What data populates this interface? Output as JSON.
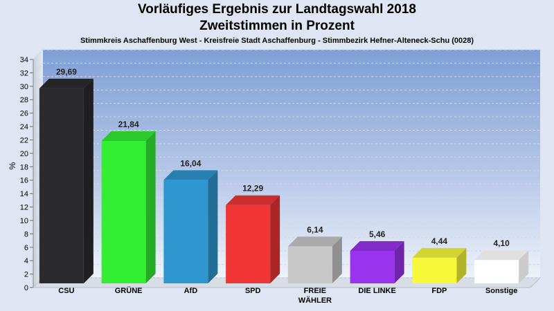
{
  "chart_data": {
    "type": "bar",
    "title": "Vorläufiges Ergebnis zur Landtagswahl 2018",
    "subtitle_line": "Zweitstimmen in Prozent",
    "subtitle": "Stimmkreis Aschaffenburg West - Kreisfreie Stadt Aschaffenburg - Stimmbezirk Hefner-Alteneck-Schu (0028)",
    "ylabel": "%",
    "xlabel": "",
    "ylim": [
      0,
      34
    ],
    "ytick_step": 2,
    "grid": true,
    "categories": [
      {
        "lines": [
          "CSU"
        ]
      },
      {
        "lines": [
          "GRÜNE"
        ]
      },
      {
        "lines": [
          "AfD"
        ]
      },
      {
        "lines": [
          "SPD"
        ]
      },
      {
        "lines": [
          "FREIE",
          "WÄHLER"
        ]
      },
      {
        "lines": [
          "DIE LINKE"
        ]
      },
      {
        "lines": [
          "FDP"
        ]
      },
      {
        "lines": [
          "Sonstige"
        ]
      }
    ],
    "values": [
      29.69,
      21.84,
      16.04,
      12.29,
      6.14,
      5.46,
      4.44,
      4.1
    ],
    "value_labels": [
      "29,69",
      "21,84",
      "16,04",
      "12,29",
      "6,14",
      "5,46",
      "4,44",
      "4,10"
    ],
    "colors": [
      "#2b2b2e",
      "#33ee33",
      "#2f97d0",
      "#f03535",
      "#c8c8c8",
      "#9933ee",
      "#f8f83a",
      "#ffffff"
    ]
  }
}
